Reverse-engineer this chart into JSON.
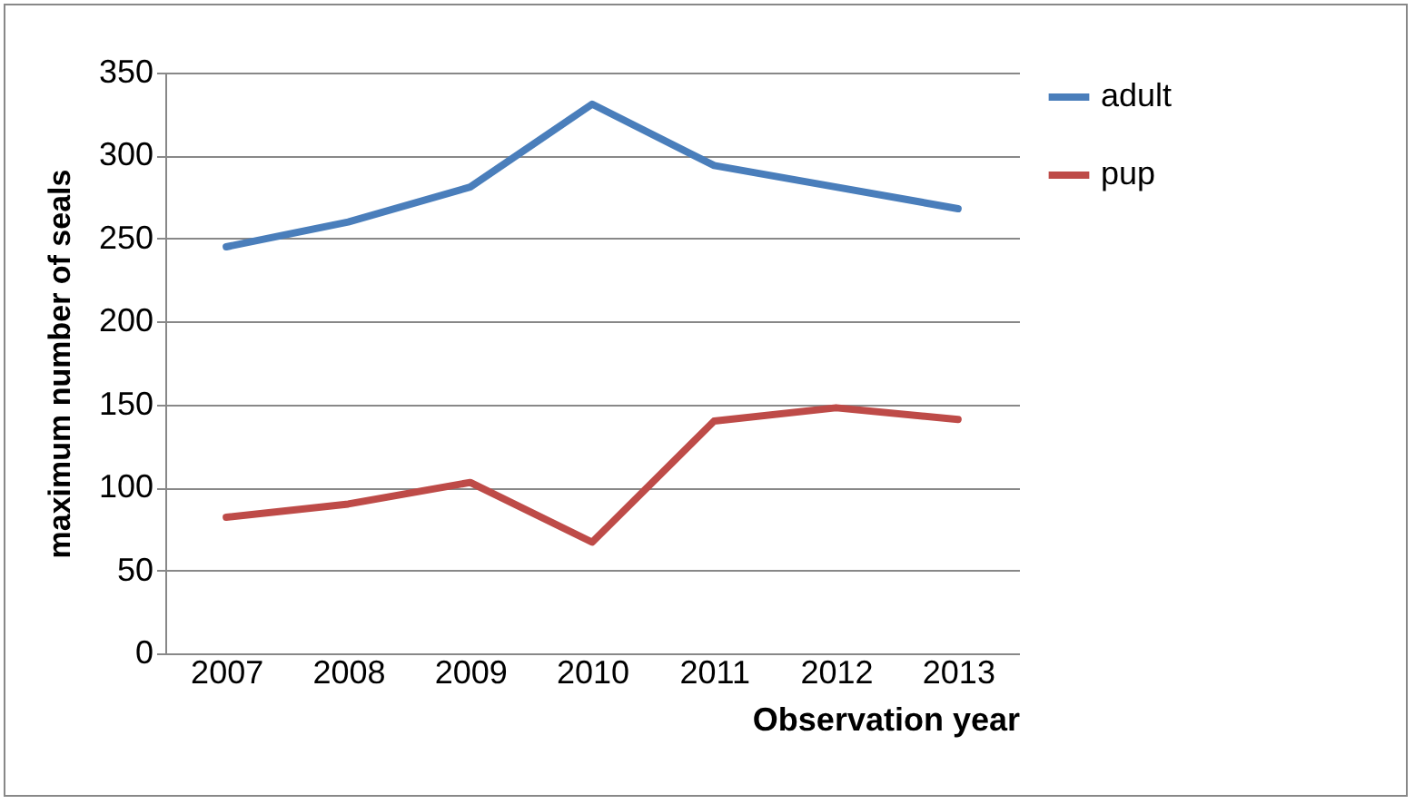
{
  "chart_data": {
    "type": "line",
    "xlabel": "Observation year",
    "ylabel": "maximum number of seals",
    "categories": [
      "2007",
      "2008",
      "2009",
      "2010",
      "2011",
      "2012",
      "2013"
    ],
    "series": [
      {
        "name": "adult",
        "color": "#4a7ebb",
        "values": [
          245,
          260,
          281,
          331,
          294,
          281,
          268
        ]
      },
      {
        "name": "pup",
        "color": "#be4b48",
        "values": [
          82,
          90,
          103,
          67,
          140,
          148,
          141
        ]
      }
    ],
    "ylim": [
      0,
      350
    ],
    "yticks": [
      0,
      50,
      100,
      150,
      200,
      250,
      300,
      350
    ],
    "grid": "y",
    "legend": "right",
    "marker": "none",
    "line_style": "solid"
  }
}
